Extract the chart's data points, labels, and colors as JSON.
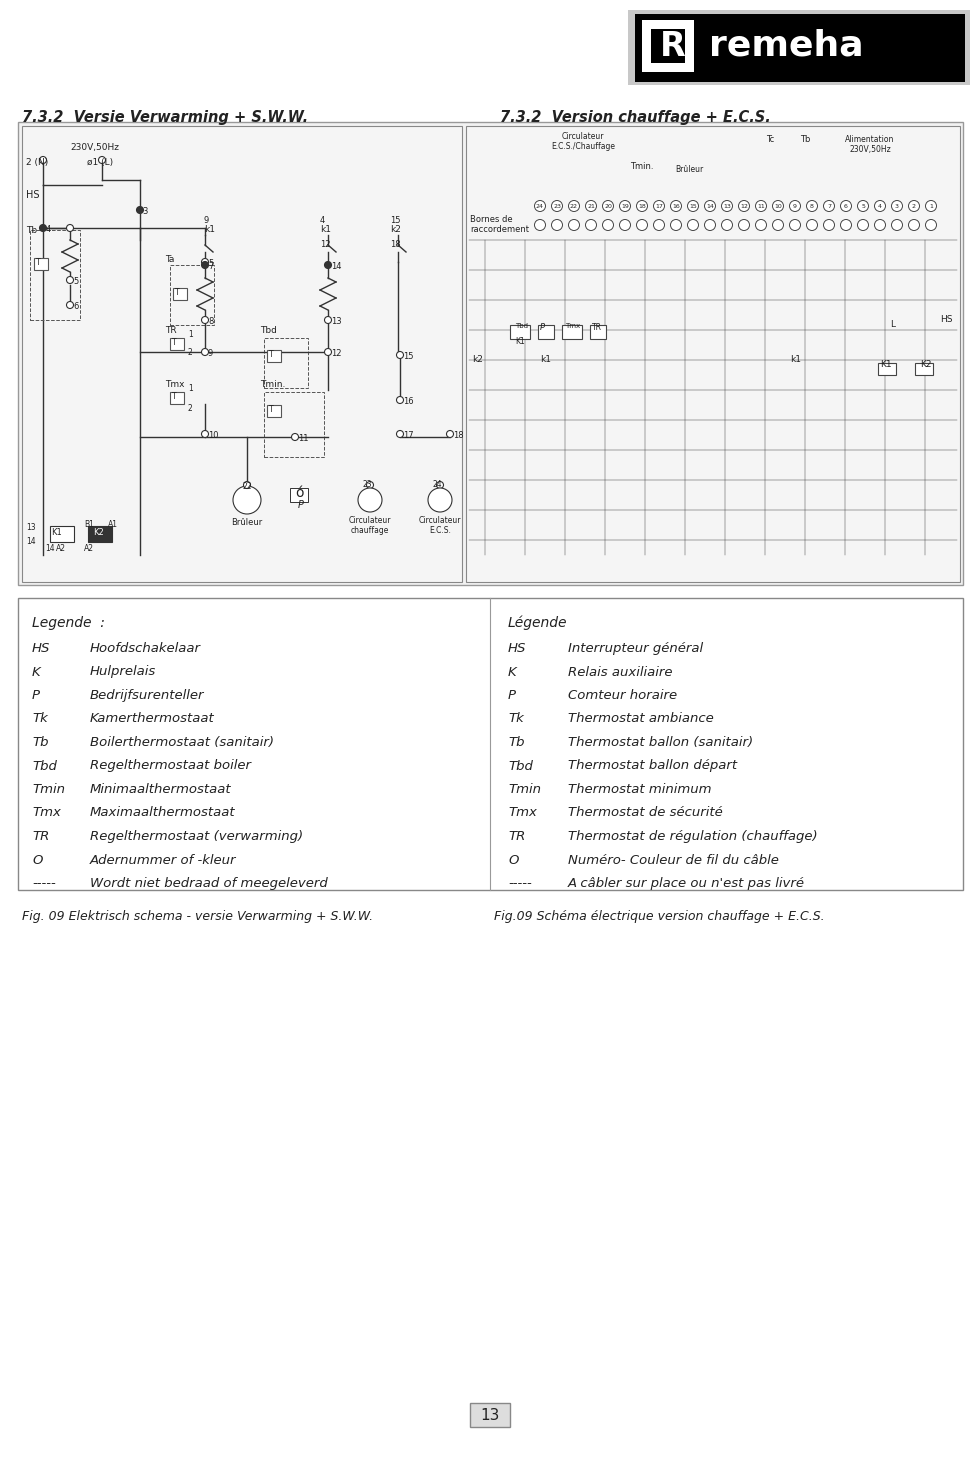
{
  "title_left": "7.3.2  Versie Verwarming + S.W.W.",
  "title_right": "7.3.2  Version chauffage + E.C.S.",
  "page_bg": "#ffffff",
  "text_color": "#222222",
  "legend_left_title": "Legende  :",
  "legend_left": [
    [
      "HS",
      "Hoofdschakelaar"
    ],
    [
      "K",
      "Hulprelais"
    ],
    [
      "P",
      "Bedrijfsurenteller"
    ],
    [
      "Tk",
      "Kamerthermostaat"
    ],
    [
      "Tb",
      "Boilerthermostaat (sanitair)"
    ],
    [
      "Tbd",
      "Regelthermostaat boiler"
    ],
    [
      "Tmin",
      "Minimaalthermostaat"
    ],
    [
      "Tmx",
      "Maximaalthermostaat"
    ],
    [
      "TR",
      "Regelthermostaat (verwarming)"
    ],
    [
      "O",
      "Adernummer of -kleur"
    ],
    [
      "-----",
      "Wordt niet bedraad of meegeleverd"
    ]
  ],
  "legend_right_title": "Légende",
  "legend_right": [
    [
      "HS",
      "Interrupteur général"
    ],
    [
      "K",
      "Relais auxiliaire"
    ],
    [
      "P",
      "Comteur horaire"
    ],
    [
      "Tk",
      "Thermostat ambiance"
    ],
    [
      "Tb",
      "Thermostat ballon (sanitair)"
    ],
    [
      "Tbd",
      "Thermostat ballon départ"
    ],
    [
      "Tmin",
      "Thermostat minimum"
    ],
    [
      "Tmx",
      "Thermostat de sécurité"
    ],
    [
      "TR",
      "Thermostat de régulation (chauffage)"
    ],
    [
      "O",
      "Numéro- Couleur de fil du câble"
    ],
    [
      "-----",
      "A câbler sur place ou n'est pas livré"
    ]
  ],
  "fig_caption_left": "Fig. 09 Elektrisch schema - versie Verwarming + S.W.W.",
  "fig_caption_right": "Fig.09 Schéma électrique version chauffage + E.C.S.",
  "page_number": "13"
}
